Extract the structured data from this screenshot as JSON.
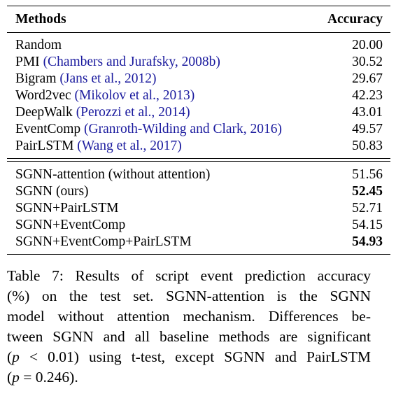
{
  "table": {
    "header": {
      "method": "Methods",
      "accuracy": "Accuracy"
    },
    "baselines": [
      {
        "name": "Random",
        "cite": "",
        "accuracy": "20.00",
        "bold": false
      },
      {
        "name": "PMI",
        "cite": "(Chambers and Jurafsky, 2008b)",
        "accuracy": "30.52",
        "bold": false
      },
      {
        "name": "Bigram",
        "cite": "(Jans et al., 2012)",
        "accuracy": "29.67",
        "bold": false
      },
      {
        "name": "Word2vec",
        "cite": "(Mikolov et al., 2013)",
        "accuracy": "42.23",
        "bold": false
      },
      {
        "name": "DeepWalk",
        "cite": "(Perozzi et al., 2014)",
        "accuracy": "43.01",
        "bold": false
      },
      {
        "name": "EventComp",
        "cite": "(Granroth-Wilding and Clark, 2016)",
        "accuracy": "49.57",
        "bold": false
      },
      {
        "name": "PairLSTM",
        "cite": "(Wang et al., 2017)",
        "accuracy": "50.83",
        "bold": false
      }
    ],
    "ours": [
      {
        "name": "SGNN-attention (without attention)",
        "cite": "",
        "accuracy": "51.56",
        "bold": false
      },
      {
        "name": "SGNN (ours)",
        "cite": "",
        "accuracy": "52.45",
        "bold": true
      },
      {
        "name": "SGNN+PairLSTM",
        "cite": "",
        "accuracy": "52.71",
        "bold": false
      },
      {
        "name": "SGNN+EventComp",
        "cite": "",
        "accuracy": "54.15",
        "bold": false
      },
      {
        "name": "SGNN+EventComp+PairLSTM",
        "cite": "",
        "accuracy": "54.93",
        "bold": true
      }
    ]
  },
  "caption": {
    "line1": "Table 7: Results of script event prediction accuracy",
    "line2": "(%) on the test set. SGNN-attention is the SGNN",
    "line3": "model without attention mechanism. Differences be-",
    "line4": "tween SGNN and all baseline methods are significant",
    "line5_a": "(",
    "line5_p": "p",
    "line5_b": " < 0.01) using t-test, except SGNN and PairLSTM",
    "line6_a": "(",
    "line6_p": "p",
    "line6_b": " = 0.246)."
  }
}
